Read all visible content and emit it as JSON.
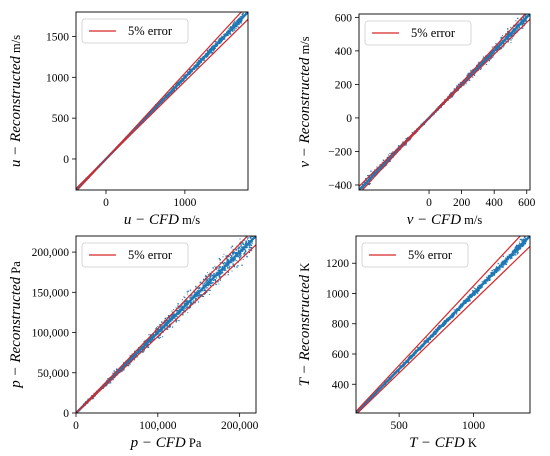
{
  "chart_data": [
    {
      "type": "scatter",
      "var": "u",
      "unit": "m/s",
      "xlabel_var": "u − ",
      "xlabel_it": "CFD",
      "xlabel_unit": " m/s",
      "ylabel_var": "u − ",
      "ylabel_it": "Reconstructed",
      "ylabel_unit": " m/s",
      "xlim": [
        -380,
        1800
      ],
      "ylim": [
        -380,
        1800
      ],
      "xticks": [
        0,
        1000
      ],
      "xtick_labels": [
        "0",
        "1000"
      ],
      "yticks": [
        0,
        500,
        1000,
        1500
      ],
      "ytick_labels": [
        "0",
        "500",
        "1000",
        "1500"
      ],
      "error_bands": [
        0.95,
        1.05
      ],
      "legend": "5% error",
      "legend_position": "top-left",
      "scatter_color": "#1f77b4",
      "line_color": "#d62728",
      "spread": 0.02
    },
    {
      "type": "scatter",
      "var": "v",
      "unit": "m/s",
      "xlabel_var": "v − ",
      "xlabel_it": "CFD",
      "xlabel_unit": " m/s",
      "ylabel_var": "v − ",
      "ylabel_it": "Reconstructed",
      "ylabel_unit": " m/s",
      "xlim": [
        -430,
        620
      ],
      "ylim": [
        -430,
        620
      ],
      "xticks": [
        0,
        200,
        400,
        600
      ],
      "xtick_labels": [
        "0",
        "200",
        "400",
        "600"
      ],
      "yticks": [
        -400,
        -200,
        0,
        200,
        400,
        600
      ],
      "ytick_labels": [
        "−400",
        "−200",
        "0",
        "200",
        "400",
        "600"
      ],
      "error_bands": [
        0.95,
        1.05
      ],
      "legend": "5% error",
      "legend_position": "top-left",
      "scatter_color": "#1f77b4",
      "line_color": "#d62728",
      "spread": 0.05
    },
    {
      "type": "scatter",
      "var": "p",
      "unit": "Pa",
      "xlabel_var": "p − ",
      "xlabel_it": "CFD",
      "xlabel_unit": " Pa",
      "ylabel_var": "p − ",
      "ylabel_it": "Reconstructed",
      "ylabel_unit": " Pa",
      "xlim": [
        0,
        220000
      ],
      "ylim": [
        0,
        220000
      ],
      "xticks": [
        0,
        100000,
        200000
      ],
      "xtick_labels": [
        "0",
        "100,000",
        "200,000"
      ],
      "yticks": [
        0,
        50000,
        100000,
        150000,
        200000
      ],
      "ytick_labels": [
        "0",
        "50,000",
        "100,000",
        "150,000",
        "200,000"
      ],
      "error_bands": [
        0.95,
        1.05
      ],
      "legend": "5% error",
      "legend_position": "top-left",
      "scatter_color": "#1f77b4",
      "line_color": "#d62728",
      "spread": 0.05
    },
    {
      "type": "scatter",
      "var": "T",
      "unit": "K",
      "xlabel_var": "T − ",
      "xlabel_it": "CFD",
      "xlabel_unit": " K",
      "ylabel_var": "T − ",
      "ylabel_it": "Reconstructed",
      "ylabel_unit": " K",
      "xlim": [
        210,
        1380
      ],
      "ylim": [
        210,
        1380
      ],
      "xticks": [
        500,
        1000
      ],
      "xtick_labels": [
        "500",
        "1000"
      ],
      "yticks": [
        400,
        600,
        800,
        1000,
        1200
      ],
      "ytick_labels": [
        "400",
        "600",
        "800",
        "1000",
        "1200"
      ],
      "error_bands": [
        0.95,
        1.05
      ],
      "legend": "5% error",
      "legend_position": "top-left",
      "scatter_color": "#1f77b4",
      "line_color": "#d62728",
      "spread": 0.015
    }
  ]
}
